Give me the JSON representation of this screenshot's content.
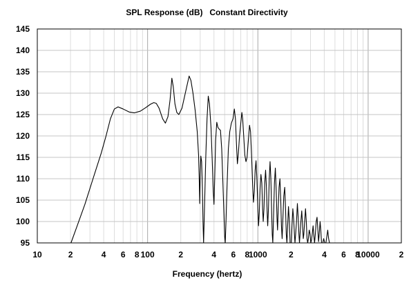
{
  "chart_data": {
    "type": "line",
    "title": "SPL Response (dB)",
    "subtitle": "Constant Directivity",
    "xlabel": "Frequency (hertz)",
    "ylabel": "",
    "x_scale": "log",
    "xlim": [
      10,
      20000
    ],
    "ylim": [
      95,
      145
    ],
    "y_ticks": [
      95,
      100,
      105,
      110,
      115,
      120,
      125,
      130,
      135,
      140,
      145
    ],
    "x_ticks": [
      {
        "value": 10,
        "label": "10"
      },
      {
        "value": 20,
        "label": "2"
      },
      {
        "value": 40,
        "label": "4"
      },
      {
        "value": 60,
        "label": "6"
      },
      {
        "value": 80,
        "label": "8"
      },
      {
        "value": 100,
        "label": "100"
      },
      {
        "value": 200,
        "label": "2"
      },
      {
        "value": 400,
        "label": "4"
      },
      {
        "value": 600,
        "label": "6"
      },
      {
        "value": 800,
        "label": "8"
      },
      {
        "value": 1000,
        "label": "1000"
      },
      {
        "value": 2000,
        "label": "2"
      },
      {
        "value": 4000,
        "label": "4"
      },
      {
        "value": 6000,
        "label": "6"
      },
      {
        "value": 8000,
        "label": "8"
      },
      {
        "value": 10000,
        "label": "10000"
      },
      {
        "value": 20000,
        "label": "2"
      }
    ],
    "grid": true,
    "series": [
      {
        "color": "#000000",
        "points": [
          [
            20.2,
            95
          ],
          [
            23,
            99
          ],
          [
            27,
            104
          ],
          [
            32,
            110
          ],
          [
            38,
            116
          ],
          [
            42,
            120
          ],
          [
            46,
            124
          ],
          [
            50,
            126.3
          ],
          [
            54,
            126.8
          ],
          [
            60,
            126.3
          ],
          [
            68,
            125.6
          ],
          [
            76,
            125.4
          ],
          [
            86,
            125.8
          ],
          [
            96,
            126.6
          ],
          [
            106,
            127.4
          ],
          [
            114,
            127.8
          ],
          [
            120,
            127.6
          ],
          [
            127,
            126.5
          ],
          [
            137,
            124.0
          ],
          [
            145,
            123.0
          ],
          [
            153,
            124.5
          ],
          [
            160,
            128.5
          ],
          [
            166,
            133.5
          ],
          [
            171,
            131.5
          ],
          [
            177,
            127.5
          ],
          [
            184,
            125.5
          ],
          [
            192,
            125.0
          ],
          [
            205,
            126.5
          ],
          [
            222,
            130.5
          ],
          [
            238,
            134.0
          ],
          [
            247,
            133.0
          ],
          [
            258,
            130.0
          ],
          [
            270,
            126.0
          ],
          [
            282,
            121.0
          ],
          [
            290,
            115.5
          ],
          [
            294,
            110.0
          ],
          [
            297,
            104.2
          ],
          [
            300,
            111.0
          ],
          [
            304,
            115.3
          ],
          [
            309,
            114.0
          ],
          [
            314,
            108.0
          ],
          [
            318,
            100.0
          ],
          [
            322,
            95.0
          ],
          [
            328,
            103.0
          ],
          [
            337,
            115.0
          ],
          [
            346,
            124.0
          ],
          [
            355,
            129.3
          ],
          [
            364,
            127.5
          ],
          [
            376,
            122.0
          ],
          [
            386,
            114.0
          ],
          [
            394,
            107.0
          ],
          [
            400,
            104.0
          ],
          [
            406,
            110.0
          ],
          [
            414,
            119.0
          ],
          [
            424,
            123.2
          ],
          [
            434,
            122.0
          ],
          [
            446,
            121.6
          ],
          [
            458,
            121.3
          ],
          [
            470,
            117.0
          ],
          [
            482,
            109.0
          ],
          [
            492,
            102.0
          ],
          [
            500,
            96.5
          ],
          [
            506,
            95.0
          ],
          [
            514,
            100.0
          ],
          [
            525,
            108.0
          ],
          [
            540,
            117.0
          ],
          [
            556,
            121.0
          ],
          [
            575,
            123.0
          ],
          [
            595,
            124.0
          ],
          [
            612,
            126.3
          ],
          [
            626,
            124.0
          ],
          [
            640,
            118.0
          ],
          [
            652,
            113.5
          ],
          [
            666,
            116.0
          ],
          [
            682,
            120.0
          ],
          [
            700,
            123.0
          ],
          [
            716,
            125.5
          ],
          [
            728,
            124.0
          ],
          [
            744,
            120.0
          ],
          [
            762,
            115.5
          ],
          [
            780,
            114.0
          ],
          [
            798,
            115.0
          ],
          [
            820,
            119.0
          ],
          [
            840,
            122.5
          ],
          [
            858,
            121.0
          ],
          [
            878,
            115.0
          ],
          [
            898,
            108.0
          ],
          [
            912,
            104.5
          ],
          [
            928,
            107.0
          ],
          [
            945,
            112.0
          ],
          [
            962,
            114.2
          ],
          [
            980,
            110.0
          ],
          [
            1000,
            103.0
          ],
          [
            1014,
            99.0
          ],
          [
            1030,
            102.0
          ],
          [
            1048,
            108.0
          ],
          [
            1066,
            111.0
          ],
          [
            1086,
            109.0
          ],
          [
            1104,
            103.0
          ],
          [
            1118,
            100.0
          ],
          [
            1136,
            103.0
          ],
          [
            1154,
            109.0
          ],
          [
            1175,
            112.0
          ],
          [
            1196,
            108.0
          ],
          [
            1214,
            102.0
          ],
          [
            1228,
            99.0
          ],
          [
            1248,
            103.0
          ],
          [
            1268,
            110.0
          ],
          [
            1290,
            114.0
          ],
          [
            1312,
            110.0
          ],
          [
            1334,
            102.0
          ],
          [
            1350,
            97.0
          ],
          [
            1366,
            95.0
          ],
          [
            1390,
            102.0
          ],
          [
            1414,
            109.0
          ],
          [
            1440,
            112.5
          ],
          [
            1468,
            107.0
          ],
          [
            1490,
            101.0
          ],
          [
            1508,
            98.0
          ],
          [
            1530,
            103.0
          ],
          [
            1556,
            108.0
          ],
          [
            1585,
            110.0
          ],
          [
            1612,
            105.0
          ],
          [
            1636,
            99.0
          ],
          [
            1660,
            96.0
          ],
          [
            1688,
            101.0
          ],
          [
            1718,
            106.0
          ],
          [
            1752,
            108.0
          ],
          [
            1782,
            103.0
          ],
          [
            1810,
            97.0
          ],
          [
            1834,
            95.0
          ],
          [
            1862,
            99.0
          ],
          [
            1895,
            103.5
          ],
          [
            1930,
            100.0
          ],
          [
            1960,
            95.0
          ],
          [
            2010,
            95.0
          ],
          [
            2040,
            99.0
          ],
          [
            2075,
            103.0
          ],
          [
            2112,
            100.5
          ],
          [
            2146,
            97.0
          ],
          [
            2170,
            95.0
          ],
          [
            2200,
            97.0
          ],
          [
            2240,
            100.0
          ],
          [
            2282,
            104.2
          ],
          [
            2320,
            101.0
          ],
          [
            2356,
            97.0
          ],
          [
            2384,
            95.0
          ],
          [
            2412,
            97.0
          ],
          [
            2455,
            100.0
          ],
          [
            2500,
            102.5
          ],
          [
            2544,
            99.0
          ],
          [
            2580,
            96.0
          ],
          [
            2610,
            97.0
          ],
          [
            2656,
            100.0
          ],
          [
            2704,
            103.0
          ],
          [
            2750,
            100.0
          ],
          [
            2790,
            96.0
          ],
          [
            2830,
            95.0
          ],
          [
            2870,
            96.0
          ],
          [
            2920,
            98.0
          ],
          [
            2975,
            97.0
          ],
          [
            3020,
            95.0
          ],
          [
            3060,
            95.6
          ],
          [
            3110,
            97.0
          ],
          [
            3168,
            99.0
          ],
          [
            3222,
            96.5
          ],
          [
            3268,
            95.0
          ],
          [
            3318,
            97.0
          ],
          [
            3380,
            100.0
          ],
          [
            3440,
            101.0
          ],
          [
            3500,
            98.0
          ],
          [
            3550,
            95.3
          ],
          [
            3600,
            97.0
          ],
          [
            3668,
            100.0
          ],
          [
            3720,
            98.0
          ],
          [
            3780,
            95.0
          ],
          [
            3880,
            95.0
          ],
          [
            3950,
            96.0
          ],
          [
            4040,
            95.0
          ],
          [
            4140,
            95.0
          ],
          [
            4220,
            96.5
          ],
          [
            4300,
            98.0
          ],
          [
            4380,
            96.0
          ],
          [
            4460,
            95.0
          ]
        ]
      }
    ]
  }
}
